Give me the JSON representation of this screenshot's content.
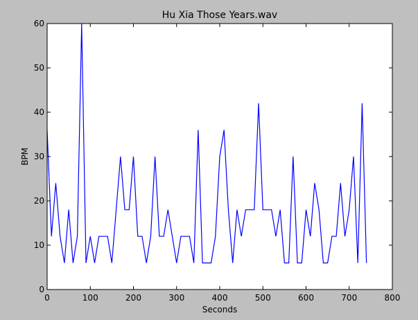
{
  "chart_data": {
    "type": "line",
    "title": "Hu Xia Those Years.wav",
    "xlabel": "Seconds",
    "ylabel": "BPM",
    "xlim": [
      0,
      800
    ],
    "ylim": [
      0,
      60
    ],
    "xticks": [
      0,
      100,
      200,
      300,
      400,
      500,
      600,
      700,
      800
    ],
    "yticks": [
      0,
      10,
      20,
      30,
      40,
      50,
      60
    ],
    "grid": false,
    "line_color": "#0000ff",
    "series": [
      {
        "x": [
          0,
          10,
          20,
          30,
          40,
          50,
          60,
          70,
          80,
          90,
          100,
          110,
          120,
          130,
          140,
          150,
          160,
          170,
          180,
          190,
          200,
          210,
          220,
          230,
          240,
          250,
          260,
          270,
          280,
          290,
          300,
          310,
          320,
          330,
          340,
          350,
          360,
          370,
          380,
          390,
          400,
          410,
          420,
          430,
          440,
          450,
          460,
          470,
          480,
          490,
          500,
          510,
          520,
          530,
          540,
          550,
          560,
          570,
          580,
          590,
          600,
          610,
          620,
          630,
          640,
          650,
          660,
          670,
          680,
          690,
          700,
          710,
          720,
          730,
          740
        ],
        "y": [
          36,
          12,
          24,
          12,
          6,
          18,
          6,
          12,
          60,
          6,
          12,
          6,
          12,
          12,
          12,
          6,
          18,
          30,
          18,
          18,
          30,
          12,
          12,
          6,
          12,
          30,
          12,
          12,
          18,
          12,
          6,
          12,
          12,
          12,
          6,
          36,
          6,
          6,
          6,
          12,
          30,
          36,
          18,
          6,
          18,
          12,
          18,
          18,
          18,
          42,
          18,
          18,
          18,
          12,
          18,
          6,
          6,
          30,
          6,
          6,
          18,
          12,
          24,
          18,
          6,
          6,
          12,
          12,
          24,
          12,
          18,
          30,
          6,
          42,
          6
        ]
      }
    ]
  }
}
